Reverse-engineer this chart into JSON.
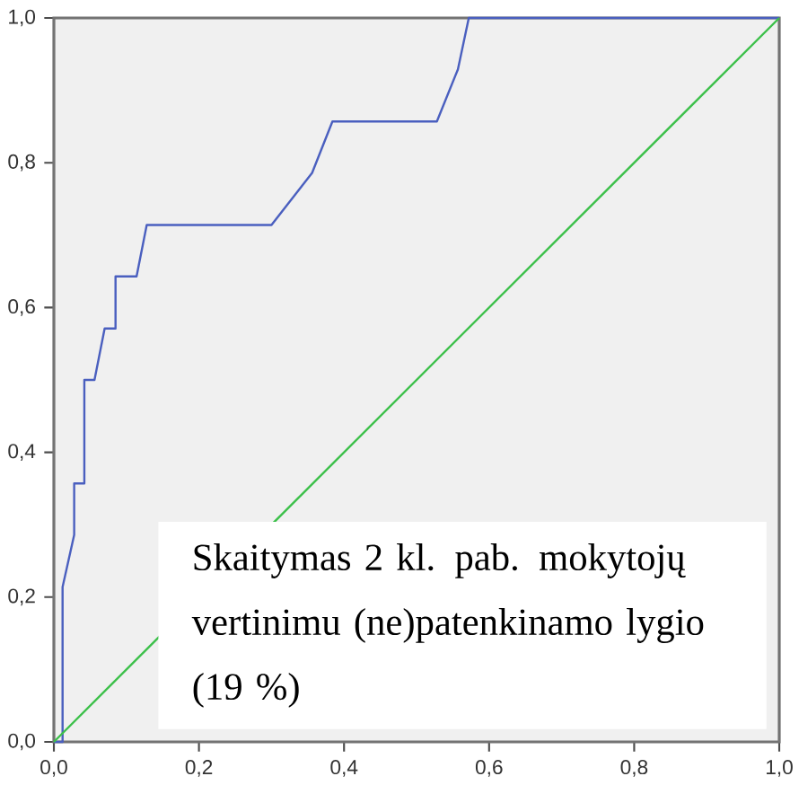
{
  "chart_data": {
    "type": "line",
    "series": [
      {
        "color": "#4a5fbf",
        "x": [
          0,
          0.012,
          0.012,
          0.028,
          0.028,
          0.042,
          0.042,
          0.056,
          0.07,
          0.085,
          0.085,
          0.114,
          0.128,
          0.3,
          0.356,
          0.384,
          0.528,
          0.557,
          0.572,
          1
        ],
        "values": [
          0,
          0,
          0.214,
          0.286,
          0.357,
          0.357,
          0.5,
          0.5,
          0.571,
          0.571,
          0.643,
          0.643,
          0.714,
          0.714,
          0.786,
          0.857,
          0.857,
          0.929,
          1,
          1
        ]
      },
      {
        "color": "#3cc04a",
        "x": [
          0,
          1
        ],
        "values": [
          0,
          1
        ]
      }
    ],
    "xlim": [
      0,
      1
    ],
    "ylim": [
      0,
      1
    ],
    "xticks": [
      {
        "value": 0,
        "label": "0,0"
      },
      {
        "value": 0.2,
        "label": "0,2"
      },
      {
        "value": 0.4,
        "label": "0,4"
      },
      {
        "value": 0.6,
        "label": "0,6"
      },
      {
        "value": 0.8,
        "label": "0,8"
      },
      {
        "value": 1,
        "label": "1,0"
      }
    ],
    "yticks": [
      {
        "value": 0,
        "label": "0,0"
      },
      {
        "value": 0.2,
        "label": "0,2"
      },
      {
        "value": 0.4,
        "label": "0,4"
      },
      {
        "value": 0.6,
        "label": "0,6"
      },
      {
        "value": 0.8,
        "label": "0,8"
      },
      {
        "value": 1,
        "label": "1,0"
      }
    ],
    "annotations": [
      "Skaitymas 2 kl. pab. mokytojų vertinimu (ne)patenkinamo lygio (19 %)"
    ]
  }
}
